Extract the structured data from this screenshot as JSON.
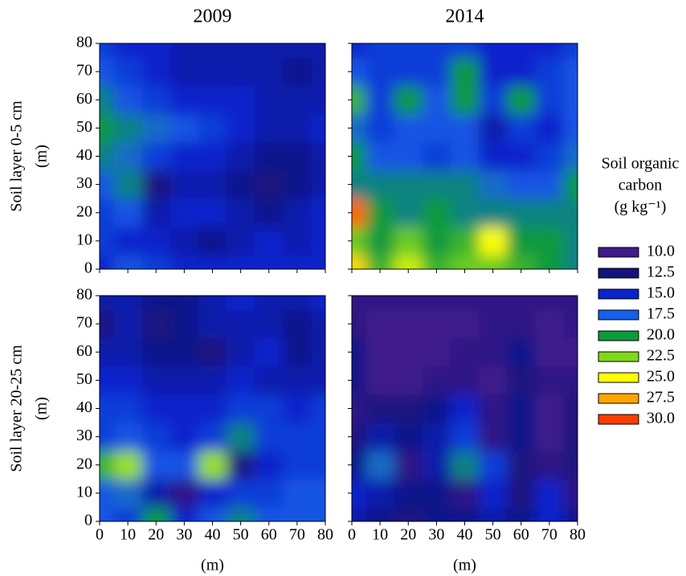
{
  "chart_data": [
    {
      "type": "heatmap",
      "title": "2009",
      "ylabel": [
        "Soil layer 0-5 cm",
        "(m)"
      ],
      "x": [
        0,
        10,
        20,
        30,
        40,
        50,
        60,
        70,
        80
      ],
      "y": [
        0,
        10,
        20,
        30,
        40,
        50,
        60,
        70,
        80
      ],
      "xlim": [
        0,
        80
      ],
      "ylim": [
        0,
        80
      ],
      "yticks": [
        0,
        10,
        20,
        30,
        40,
        50,
        60,
        70,
        80
      ],
      "z": [
        [
          15,
          17,
          16,
          15,
          15,
          15,
          15,
          15,
          15
        ],
        [
          16,
          15,
          15,
          14,
          13,
          14,
          15,
          14,
          15
        ],
        [
          16,
          17,
          14,
          15,
          15,
          14,
          13,
          14,
          15
        ],
        [
          17,
          19,
          12,
          14,
          14,
          13,
          12,
          13,
          14
        ],
        [
          19,
          18,
          16,
          15,
          15,
          14,
          13,
          13,
          14
        ],
        [
          20,
          19,
          18,
          17,
          16,
          15,
          14,
          14,
          15
        ],
        [
          19,
          17,
          16,
          15,
          15,
          15,
          14,
          14,
          14
        ],
        [
          17,
          16,
          15,
          14,
          14,
          14,
          14,
          13,
          14
        ],
        [
          16,
          15,
          15,
          14,
          14,
          14,
          14,
          14,
          14
        ]
      ]
    },
    {
      "type": "heatmap",
      "title": "2014",
      "x": [
        0,
        10,
        20,
        30,
        40,
        50,
        60,
        70,
        80
      ],
      "y": [
        0,
        10,
        20,
        30,
        40,
        50,
        60,
        70,
        80
      ],
      "xlim": [
        0,
        80
      ],
      "ylim": [
        0,
        80
      ],
      "z": [
        [
          26,
          21,
          24,
          21,
          22,
          22,
          21,
          20,
          19
        ],
        [
          22,
          20,
          22,
          20,
          21,
          25,
          20,
          20,
          19
        ],
        [
          29,
          20,
          19,
          20,
          19,
          19,
          19,
          19,
          19
        ],
        [
          19,
          19,
          19,
          19,
          19,
          18,
          17,
          17,
          20
        ],
        [
          20,
          17,
          17,
          16,
          17,
          15,
          15,
          16,
          18
        ],
        [
          18,
          16,
          17,
          17,
          17,
          14,
          16,
          15,
          17
        ],
        [
          21,
          16,
          20,
          17,
          20,
          16,
          20,
          16,
          17
        ],
        [
          17,
          16,
          16,
          16,
          20,
          15,
          15,
          16,
          17
        ],
        [
          15,
          16,
          16,
          16,
          16,
          15,
          15,
          15,
          16
        ]
      ]
    },
    {
      "type": "heatmap",
      "ylabel": [
        "Soil layer 20-25 cm",
        "(m)"
      ],
      "xlabel": "(m)",
      "x": [
        0,
        10,
        20,
        30,
        40,
        50,
        60,
        70,
        80
      ],
      "y": [
        0,
        10,
        20,
        30,
        40,
        50,
        60,
        70,
        80
      ],
      "xlim": [
        0,
        80
      ],
      "ylim": [
        0,
        80
      ],
      "xticks": [
        0,
        10,
        20,
        30,
        40,
        50,
        60,
        70,
        80
      ],
      "yticks": [
        0,
        10,
        20,
        30,
        40,
        50,
        60,
        70,
        80
      ],
      "z": [
        [
          17,
          16,
          20,
          15,
          17,
          19,
          17,
          17,
          17
        ],
        [
          17,
          18,
          14,
          11,
          15,
          16,
          16,
          17,
          17
        ],
        [
          21,
          23,
          17,
          17,
          23,
          12,
          15,
          16,
          16
        ],
        [
          16,
          17,
          16,
          15,
          16,
          19,
          16,
          16,
          16
        ],
        [
          16,
          16,
          15,
          15,
          15,
          16,
          16,
          15,
          16
        ],
        [
          15,
          15,
          14,
          14,
          14,
          15,
          14,
          14,
          14
        ],
        [
          14,
          14,
          13,
          13,
          12,
          14,
          15,
          13,
          14
        ],
        [
          12,
          14,
          12,
          13,
          14,
          14,
          14,
          13,
          14
        ],
        [
          14,
          14,
          13,
          13,
          14,
          15,
          14,
          14,
          15
        ]
      ]
    },
    {
      "type": "heatmap",
      "xlabel": "(m)",
      "x": [
        0,
        10,
        20,
        30,
        40,
        50,
        60,
        70,
        80
      ],
      "y": [
        0,
        10,
        20,
        30,
        40,
        50,
        60,
        70,
        80
      ],
      "xlim": [
        0,
        80
      ],
      "ylim": [
        0,
        80
      ],
      "xticks": [
        0,
        10,
        20,
        30,
        40,
        50,
        60,
        70,
        80
      ],
      "z": [
        [
          14,
          13,
          12,
          13,
          13,
          14,
          13,
          15,
          13
        ],
        [
          15,
          14,
          13,
          13,
          11,
          15,
          12,
          15,
          11
        ],
        [
          13,
          18,
          11,
          14,
          19,
          16,
          12,
          11,
          12
        ],
        [
          12,
          14,
          13,
          14,
          16,
          11,
          13,
          10,
          12
        ],
        [
          11,
          12,
          12,
          13,
          15,
          11,
          13,
          10,
          12
        ],
        [
          13,
          10,
          10,
          11,
          11,
          10,
          12,
          11,
          11
        ],
        [
          13,
          10,
          10,
          10,
          11,
          11,
          13,
          10,
          10
        ],
        [
          11,
          10,
          10,
          10,
          10,
          11,
          11,
          10,
          11
        ],
        [
          11,
          11,
          11,
          11,
          11,
          11,
          11,
          11,
          11
        ]
      ]
    }
  ],
  "legend": {
    "title": [
      "Soil organic",
      "carbon",
      "(g kg⁻¹)"
    ],
    "levels": [
      {
        "value": 10,
        "label": "10.0"
      },
      {
        "value": 12.5,
        "label": "12.5"
      },
      {
        "value": 15,
        "label": "15.0"
      },
      {
        "value": 17.5,
        "label": "17.5"
      },
      {
        "value": 20,
        "label": "20.0"
      },
      {
        "value": 22.5,
        "label": "22.5"
      },
      {
        "value": 25,
        "label": "25.0"
      },
      {
        "value": 27.5,
        "label": "27.5"
      },
      {
        "value": 30,
        "label": "30.0"
      }
    ],
    "colors": [
      "#3f1a8c",
      "#13137a",
      "#0a24cc",
      "#1460ea",
      "#0b9a3c",
      "#80d81c",
      "#ffff00",
      "#ffa500",
      "#ff3c00"
    ]
  }
}
